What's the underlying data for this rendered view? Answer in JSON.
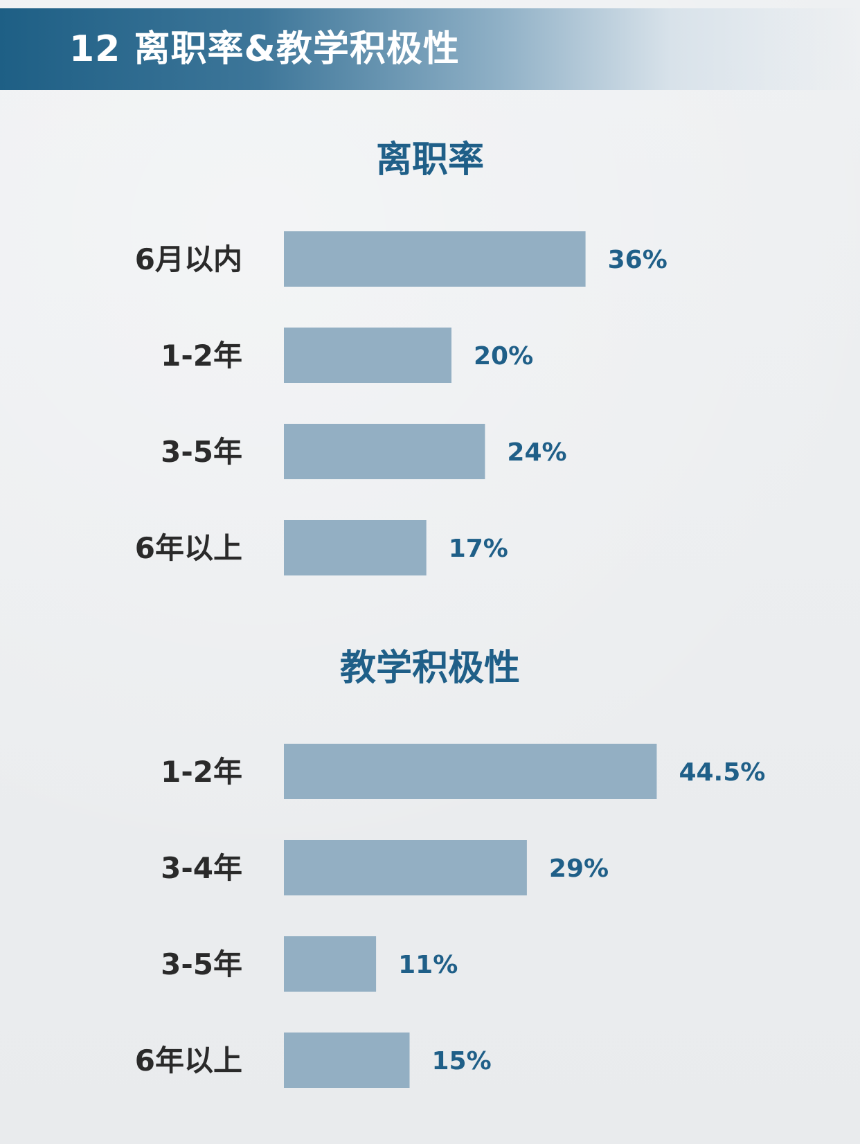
{
  "header": {
    "title": "12 离职率&教学积极性"
  },
  "colors": {
    "header_start": "#1e5f85",
    "section_title": "#1f5f88",
    "bar": "#93afc3",
    "value_label": "#1f5f88",
    "category_label": "#2a2a2a",
    "background": "#eceef0"
  },
  "chart_data": [
    {
      "type": "bar",
      "orientation": "horizontal",
      "title": "离职率",
      "categories": [
        "6月以内",
        "1-2年",
        "3-5年",
        "6年以上"
      ],
      "values": [
        36,
        20,
        24,
        17
      ],
      "value_labels": [
        "36%",
        "20%",
        "24%",
        "17%"
      ],
      "xlim": [
        0,
        50
      ],
      "grid": false,
      "xlabel": "",
      "ylabel": ""
    },
    {
      "type": "bar",
      "orientation": "horizontal",
      "title": "教学积极性",
      "categories": [
        "1-2年",
        "3-4年",
        "3-5年",
        "6年以上"
      ],
      "values": [
        44.5,
        29,
        11,
        15
      ],
      "value_labels": [
        "44.5%",
        "29%",
        "11%",
        "15%"
      ],
      "xlim": [
        0,
        50
      ],
      "grid": false,
      "xlabel": "",
      "ylabel": ""
    }
  ]
}
